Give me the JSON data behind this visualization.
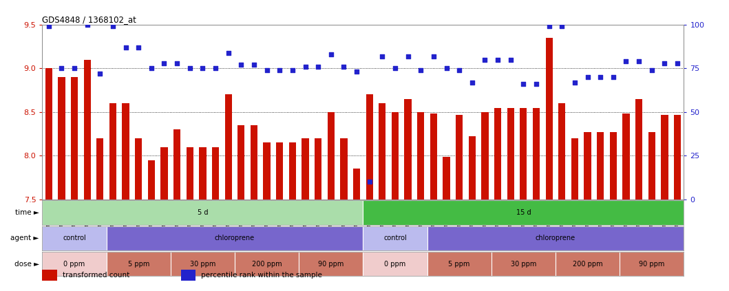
{
  "title": "GDS4848 / 1368102_at",
  "samples": [
    "GSM1001824",
    "GSM1001825",
    "GSM1001826",
    "GSM1001827",
    "GSM1001828",
    "GSM1001854",
    "GSM1001855",
    "GSM1001856",
    "GSM1001857",
    "GSM1001858",
    "GSM1001844",
    "GSM1001845",
    "GSM1001846",
    "GSM1001847",
    "GSM1001848",
    "GSM1001834",
    "GSM1001835",
    "GSM1001836",
    "GSM1001837",
    "GSM1001838",
    "GSM1001864",
    "GSM1001865",
    "GSM1001866",
    "GSM1001867",
    "GSM1001868",
    "GSM1001819",
    "GSM1001820",
    "GSM1001821",
    "GSM1001822",
    "GSM1001823",
    "GSM1001849",
    "GSM1001850",
    "GSM1001851",
    "GSM1001852",
    "GSM1001853",
    "GSM1001839",
    "GSM1001840",
    "GSM1001841",
    "GSM1001842",
    "GSM1001843",
    "GSM1001829",
    "GSM1001830",
    "GSM1001831",
    "GSM1001832",
    "GSM1001833",
    "GSM1001859",
    "GSM1001860",
    "GSM1001861",
    "GSM1001862",
    "GSM1001863"
  ],
  "bar_values": [
    9.0,
    8.9,
    8.9,
    9.1,
    8.2,
    8.6,
    8.6,
    8.2,
    7.95,
    8.1,
    8.3,
    8.1,
    8.1,
    8.1,
    8.7,
    8.35,
    8.35,
    8.15,
    8.15,
    8.15,
    8.2,
    8.2,
    8.5,
    8.2,
    7.85,
    8.7,
    8.6,
    8.5,
    8.65,
    8.5,
    8.48,
    7.99,
    8.47,
    8.22,
    8.5,
    8.55,
    8.55,
    8.55,
    8.55,
    9.35,
    8.6,
    8.2,
    8.27,
    8.27,
    8.27,
    8.48,
    8.65,
    8.27,
    8.47,
    8.47
  ],
  "dot_values": [
    99,
    75,
    75,
    100,
    72,
    99,
    87,
    87,
    75,
    78,
    78,
    75,
    75,
    75,
    84,
    77,
    77,
    74,
    74,
    74,
    76,
    76,
    83,
    76,
    73,
    10,
    82,
    75,
    82,
    74,
    82,
    75,
    74,
    67,
    80,
    80,
    80,
    66,
    66,
    99,
    99,
    67,
    70,
    70,
    70,
    79,
    79,
    74,
    78,
    78
  ],
  "bar_bottom": 7.5,
  "ylim_left": [
    7.5,
    9.5
  ],
  "ylim_right": [
    0,
    100
  ],
  "yticks_left": [
    7.5,
    8.0,
    8.5,
    9.0,
    9.5
  ],
  "yticks_right": [
    0,
    25,
    50,
    75,
    100
  ],
  "hlines": [
    8.0,
    8.5,
    9.0
  ],
  "bar_color": "#cc1100",
  "dot_color": "#2222cc",
  "time_spans": [
    {
      "label": "5 d",
      "start": 0,
      "end": 25,
      "color": "#aaddaa"
    },
    {
      "label": "15 d",
      "start": 25,
      "end": 50,
      "color": "#44bb44"
    }
  ],
  "agent_spans": [
    {
      "label": "control",
      "start": 0,
      "end": 5,
      "color": "#bbbbee"
    },
    {
      "label": "chloroprene",
      "start": 5,
      "end": 25,
      "color": "#7766cc"
    },
    {
      "label": "control",
      "start": 25,
      "end": 30,
      "color": "#bbbbee"
    },
    {
      "label": "chloroprene",
      "start": 30,
      "end": 50,
      "color": "#7766cc"
    }
  ],
  "dose_spans": [
    {
      "label": "0 ppm",
      "start": 0,
      "end": 5,
      "color": "#f0cccc"
    },
    {
      "label": "5 ppm",
      "start": 5,
      "end": 10,
      "color": "#cc7766"
    },
    {
      "label": "30 ppm",
      "start": 10,
      "end": 15,
      "color": "#cc7766"
    },
    {
      "label": "200 ppm",
      "start": 15,
      "end": 20,
      "color": "#cc7766"
    },
    {
      "label": "90 ppm",
      "start": 20,
      "end": 25,
      "color": "#cc7766"
    },
    {
      "label": "0 ppm",
      "start": 25,
      "end": 30,
      "color": "#f0cccc"
    },
    {
      "label": "5 ppm",
      "start": 30,
      "end": 35,
      "color": "#cc7766"
    },
    {
      "label": "30 ppm",
      "start": 35,
      "end": 40,
      "color": "#cc7766"
    },
    {
      "label": "200 ppm",
      "start": 40,
      "end": 45,
      "color": "#cc7766"
    },
    {
      "label": "90 ppm",
      "start": 45,
      "end": 50,
      "color": "#cc7766"
    }
  ],
  "legend_items": [
    {
      "label": "transformed count",
      "color": "#cc1100"
    },
    {
      "label": "percentile rank within the sample",
      "color": "#2222cc"
    }
  ]
}
